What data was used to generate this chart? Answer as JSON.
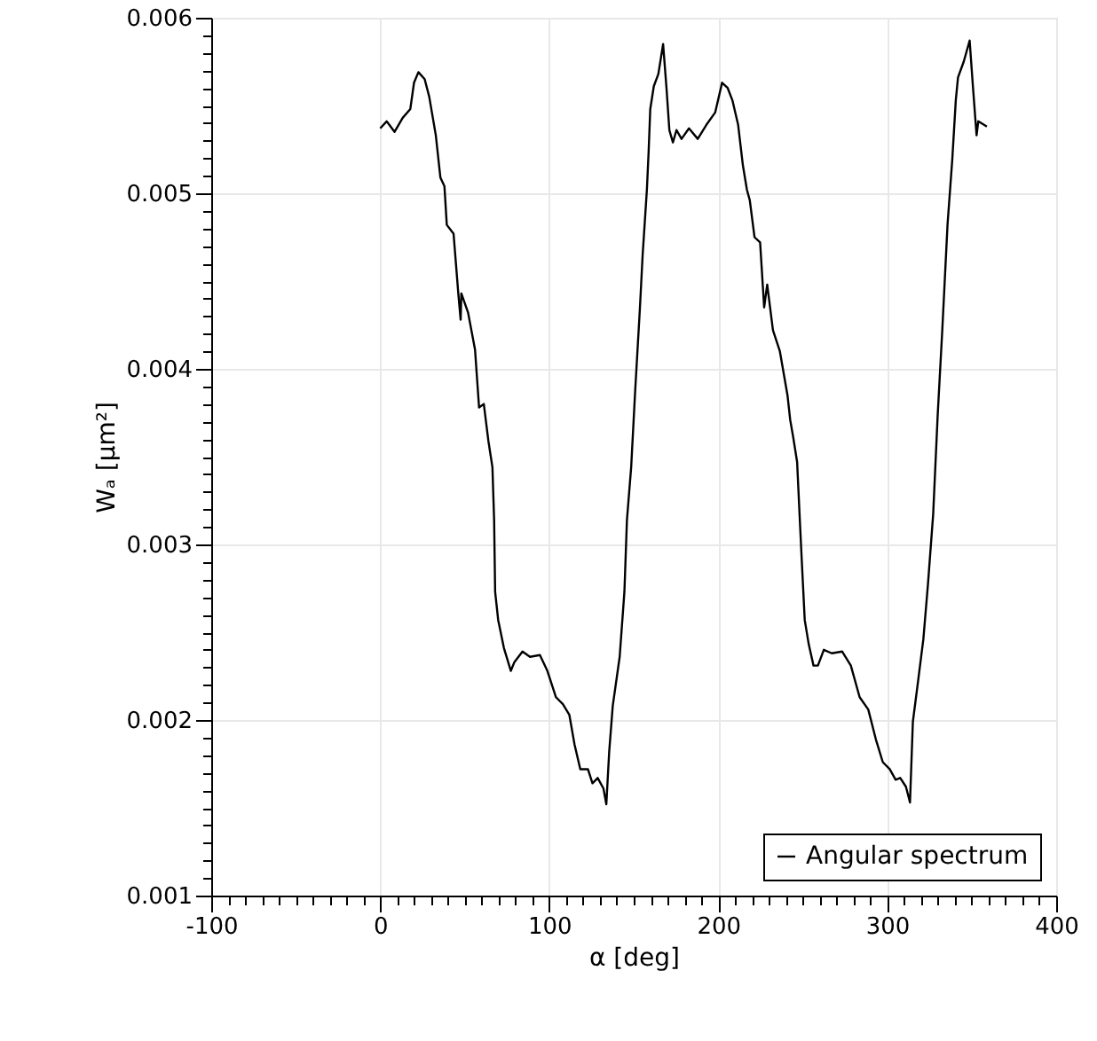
{
  "chart_data": {
    "type": "line",
    "xlabel": "α [deg]",
    "ylabel": "Wₐ [µm²]",
    "xlim": [
      -100,
      400
    ],
    "ylim": [
      0.001,
      0.006
    ],
    "xticks": [
      -100,
      {
        "value": -90,
        "label": null
      },
      {
        "value": -80,
        "label": null
      },
      {
        "value": -70,
        "label": null
      },
      {
        "value": -60,
        "label": null
      },
      {
        "value": -50,
        "label": null
      },
      {
        "value": -40,
        "label": null
      },
      {
        "value": -30,
        "label": null
      },
      {
        "value": -20,
        "label": null
      },
      {
        "value": -10,
        "label": null
      },
      0,
      {
        "value": 10,
        "label": null
      },
      {
        "value": 20,
        "label": null
      },
      {
        "value": 30,
        "label": null
      },
      {
        "value": 40,
        "label": null
      },
      {
        "value": 50,
        "label": null
      },
      {
        "value": 60,
        "label": null
      },
      {
        "value": 70,
        "label": null
      },
      {
        "value": 80,
        "label": null
      },
      {
        "value": 90,
        "label": null
      },
      100,
      {
        "value": 110,
        "label": null
      },
      {
        "value": 120,
        "label": null
      },
      {
        "value": 130,
        "label": null
      },
      {
        "value": 140,
        "label": null
      },
      {
        "value": 150,
        "label": null
      },
      {
        "value": 160,
        "label": null
      },
      {
        "value": 170,
        "label": null
      },
      {
        "value": 180,
        "label": null
      },
      {
        "value": 190,
        "label": null
      },
      200,
      {
        "value": 210,
        "label": null
      },
      {
        "value": 220,
        "label": null
      },
      {
        "value": 230,
        "label": null
      },
      {
        "value": 240,
        "label": null
      },
      {
        "value": 250,
        "label": null
      },
      {
        "value": 260,
        "label": null
      },
      {
        "value": 270,
        "label": null
      },
      {
        "value": 280,
        "label": null
      },
      {
        "value": 290,
        "label": null
      },
      300,
      {
        "value": 310,
        "label": null
      },
      {
        "value": 320,
        "label": null
      },
      {
        "value": 330,
        "label": null
      },
      {
        "value": 340,
        "label": null
      },
      {
        "value": 350,
        "label": null
      },
      {
        "value": 360,
        "label": null
      },
      {
        "value": 370,
        "label": null
      },
      {
        "value": 380,
        "label": null
      },
      {
        "value": 390,
        "label": null
      },
      400
    ],
    "yticks": [
      0.001,
      {
        "value": 0.0011,
        "label": null
      },
      {
        "value": 0.0012,
        "label": null
      },
      {
        "value": 0.0013,
        "label": null
      },
      {
        "value": 0.0014,
        "label": null
      },
      {
        "value": 0.0015,
        "label": null
      },
      {
        "value": 0.0016,
        "label": null
      },
      {
        "value": 0.0017,
        "label": null
      },
      {
        "value": 0.0018,
        "label": null
      },
      {
        "value": 0.0019,
        "label": null
      },
      0.002,
      {
        "value": 0.0021,
        "label": null
      },
      {
        "value": 0.0022,
        "label": null
      },
      {
        "value": 0.0023,
        "label": null
      },
      {
        "value": 0.0024,
        "label": null
      },
      {
        "value": 0.0025,
        "label": null
      },
      {
        "value": 0.0026,
        "label": null
      },
      {
        "value": 0.0027,
        "label": null
      },
      {
        "value": 0.0028,
        "label": null
      },
      {
        "value": 0.0029,
        "label": null
      },
      0.003,
      {
        "value": 0.0031,
        "label": null
      },
      {
        "value": 0.0032,
        "label": null
      },
      {
        "value": 0.0033,
        "label": null
      },
      {
        "value": 0.0034,
        "label": null
      },
      {
        "value": 0.0035,
        "label": null
      },
      {
        "value": 0.0036,
        "label": null
      },
      {
        "value": 0.0037,
        "label": null
      },
      {
        "value": 0.0038,
        "label": null
      },
      {
        "value": 0.0039,
        "label": null
      },
      0.004,
      {
        "value": 0.0041,
        "label": null
      },
      {
        "value": 0.0042,
        "label": null
      },
      {
        "value": 0.0043,
        "label": null
      },
      {
        "value": 0.0044,
        "label": null
      },
      {
        "value": 0.0045,
        "label": null
      },
      {
        "value": 0.0046,
        "label": null
      },
      {
        "value": 0.0047,
        "label": null
      },
      {
        "value": 0.0048,
        "label": null
      },
      {
        "value": 0.0049,
        "label": null
      },
      0.005,
      {
        "value": 0.0051,
        "label": null
      },
      {
        "value": 0.0052,
        "label": null
      },
      {
        "value": 0.0053,
        "label": null
      },
      {
        "value": 0.0054,
        "label": null
      },
      {
        "value": 0.0055,
        "label": null
      },
      {
        "value": 0.0056,
        "label": null
      },
      {
        "value": 0.0057,
        "label": null
      },
      {
        "value": 0.0058,
        "label": null
      },
      {
        "value": 0.0059,
        "label": null
      },
      0.006
    ],
    "grid": true,
    "legend": "bottom right",
    "marker": "none",
    "line_style": "solid",
    "series": [
      {
        "name": "Angular spectrum",
        "color": "#000000",
        "x": [
          0,
          3.8,
          8.5,
          13.3,
          17.8,
          20,
          22.6,
          26.3,
          29,
          32.9,
          35.6,
          38,
          39.4,
          43.4,
          46.2,
          47.6,
          48,
          52,
          56.1,
          58.5,
          61.3,
          64,
          66.4,
          67.4,
          68,
          69.8,
          73.2,
          77.3,
          79.4,
          84.2,
          88.6,
          94.5,
          98.9,
          104,
          108.1,
          111.9,
          115,
          118.4,
          122.9,
          125.6,
          128.7,
          132.1,
          133.8,
          135.5,
          137.6,
          141.7,
          144.5,
          146,
          148.5,
          150.9,
          153.7,
          155.3,
          157.8,
          158.8,
          159.8,
          161.9,
          164.6,
          167.4,
          169.4,
          171.1,
          173.2,
          175.3,
          178.3,
          182.7,
          187.9,
          193,
          198.2,
          202.3,
          205.6,
          208.4,
          211.8,
          214.6,
          217,
          218.7,
          221.5,
          224.8,
          227.2,
          229,
          232.4,
          236.5,
          241,
          242.6,
          244.4,
          246.7,
          248.5,
          249.5,
          251.2,
          253.6,
          256.4,
          259,
          262.5,
          267.2,
          273.4,
          278.5,
          283.7,
          288.8,
          293.3,
          297.4,
          301.5,
          305,
          307.7,
          311.1,
          313.5,
          315.2,
          318,
          321.4,
          324.1,
          327.2,
          329.9,
          332.6,
          335.7,
          338.5,
          340.6,
          341.9,
          345.3,
          348.8,
          350.8,
          352.9,
          353.9,
          359
        ],
        "values": [
          0.00537,
          0.00541,
          0.00535,
          0.00543,
          0.00548,
          0.00563,
          0.00569,
          0.00565,
          0.00555,
          0.00533,
          0.00509,
          0.00504,
          0.00482,
          0.00477,
          0.00443,
          0.00428,
          0.00443,
          0.00432,
          0.00411,
          0.00378,
          0.0038,
          0.00359,
          0.00344,
          0.00314,
          0.00273,
          0.00257,
          0.00241,
          0.00228,
          0.00233,
          0.00239,
          0.00236,
          0.00237,
          0.00228,
          0.00213,
          0.00209,
          0.00203,
          0.00186,
          0.00172,
          0.00172,
          0.00164,
          0.00167,
          0.00161,
          0.00152,
          0.00182,
          0.00208,
          0.00236,
          0.00273,
          0.00314,
          0.00344,
          0.00388,
          0.00435,
          0.00465,
          0.00502,
          0.00523,
          0.00548,
          0.00561,
          0.00568,
          0.00585,
          0.0056,
          0.00536,
          0.00529,
          0.00536,
          0.00531,
          0.00537,
          0.00531,
          0.00539,
          0.00546,
          0.00563,
          0.0056,
          0.00553,
          0.00539,
          0.00516,
          0.00502,
          0.00496,
          0.00475,
          0.00472,
          0.00435,
          0.00448,
          0.00422,
          0.0041,
          0.00385,
          0.00371,
          0.00361,
          0.00347,
          0.0031,
          0.0029,
          0.00257,
          0.00243,
          0.00231,
          0.00231,
          0.0024,
          0.00238,
          0.00239,
          0.00231,
          0.00213,
          0.00206,
          0.00189,
          0.00176,
          0.00172,
          0.00166,
          0.00167,
          0.00162,
          0.00153,
          0.00199,
          0.0022,
          0.00246,
          0.00277,
          0.00317,
          0.00374,
          0.00422,
          0.00482,
          0.00519,
          0.00553,
          0.00566,
          0.00575,
          0.00587,
          0.0056,
          0.00533,
          0.00541,
          0.00538
        ]
      }
    ]
  }
}
